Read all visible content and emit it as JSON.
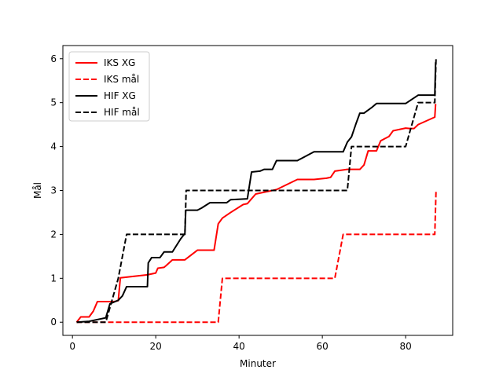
{
  "chart_data": {
    "type": "line",
    "title": "",
    "xlabel": "Minuter",
    "ylabel": "Mål",
    "xlim": [
      -2.3,
      91.3
    ],
    "ylim": [
      -0.3,
      6.3
    ],
    "xticks": [
      0,
      20,
      40,
      60,
      80
    ],
    "yticks": [
      0,
      1,
      2,
      3,
      4,
      5,
      6
    ],
    "grid": false,
    "legend_position": "top-left",
    "series": [
      {
        "name": "IKS XG",
        "color": "#ff0000",
        "dash": "solid",
        "x": [
          1,
          2,
          4,
          5,
          6,
          10,
          11,
          11.5,
          18,
          20,
          20.5,
          22,
          22.5,
          24,
          27,
          30,
          34,
          35,
          36,
          38,
          41,
          42,
          44,
          46,
          49,
          54,
          58,
          61,
          62,
          63,
          66,
          67,
          69,
          70,
          71,
          73,
          74,
          75,
          76,
          77,
          79,
          80,
          81,
          82,
          83,
          87,
          87.2
        ],
        "y": [
          0,
          0.12,
          0.12,
          0.25,
          0.47,
          0.47,
          0.49,
          1.01,
          1.08,
          1.12,
          1.23,
          1.25,
          1.29,
          1.42,
          1.42,
          1.64,
          1.64,
          2.24,
          2.37,
          2.5,
          2.68,
          2.7,
          2.92,
          2.96,
          3.02,
          3.25,
          3.25,
          3.28,
          3.3,
          3.44,
          3.48,
          3.48,
          3.48,
          3.58,
          3.9,
          3.9,
          4.13,
          4.18,
          4.23,
          4.36,
          4.4,
          4.42,
          4.41,
          4.41,
          4.5,
          4.67,
          4.97
        ]
      },
      {
        "name": "IKS mål",
        "color": "#ff0000",
        "dash": "dashed",
        "x": [
          1,
          35,
          36,
          63,
          65,
          87,
          87.3
        ],
        "y": [
          0,
          0,
          1,
          1,
          2,
          2,
          3
        ]
      },
      {
        "name": "HIF XG",
        "color": "#000000",
        "dash": "solid",
        "x": [
          1,
          4,
          8,
          9,
          11,
          12,
          13,
          18,
          18.2,
          19,
          21,
          22,
          24,
          26,
          27,
          27.2,
          30,
          31,
          33,
          37,
          38,
          42,
          43,
          45,
          46,
          48,
          49,
          54,
          58,
          62,
          65,
          66,
          67,
          68,
          69,
          70,
          72,
          73,
          80,
          83,
          87,
          87.2
        ],
        "y": [
          0,
          0.02,
          0.1,
          0.42,
          0.5,
          0.6,
          0.81,
          0.81,
          1.35,
          1.47,
          1.47,
          1.6,
          1.6,
          1.9,
          2.02,
          2.55,
          2.55,
          2.6,
          2.72,
          2.72,
          2.79,
          2.81,
          3.42,
          3.44,
          3.48,
          3.48,
          3.68,
          3.68,
          3.88,
          3.88,
          3.88,
          4.1,
          4.22,
          4.5,
          4.76,
          4.76,
          4.9,
          4.98,
          4.98,
          5.17,
          5.17,
          5.92
        ]
      },
      {
        "name": "HIF mål",
        "color": "#000000",
        "dash": "dashed",
        "x": [
          1,
          8,
          11,
          13,
          27,
          27.3,
          66,
          67,
          80,
          83,
          87,
          87.3
        ],
        "y": [
          0,
          0,
          1,
          2,
          2,
          3,
          3,
          4,
          4,
          5,
          5,
          6
        ]
      }
    ]
  }
}
